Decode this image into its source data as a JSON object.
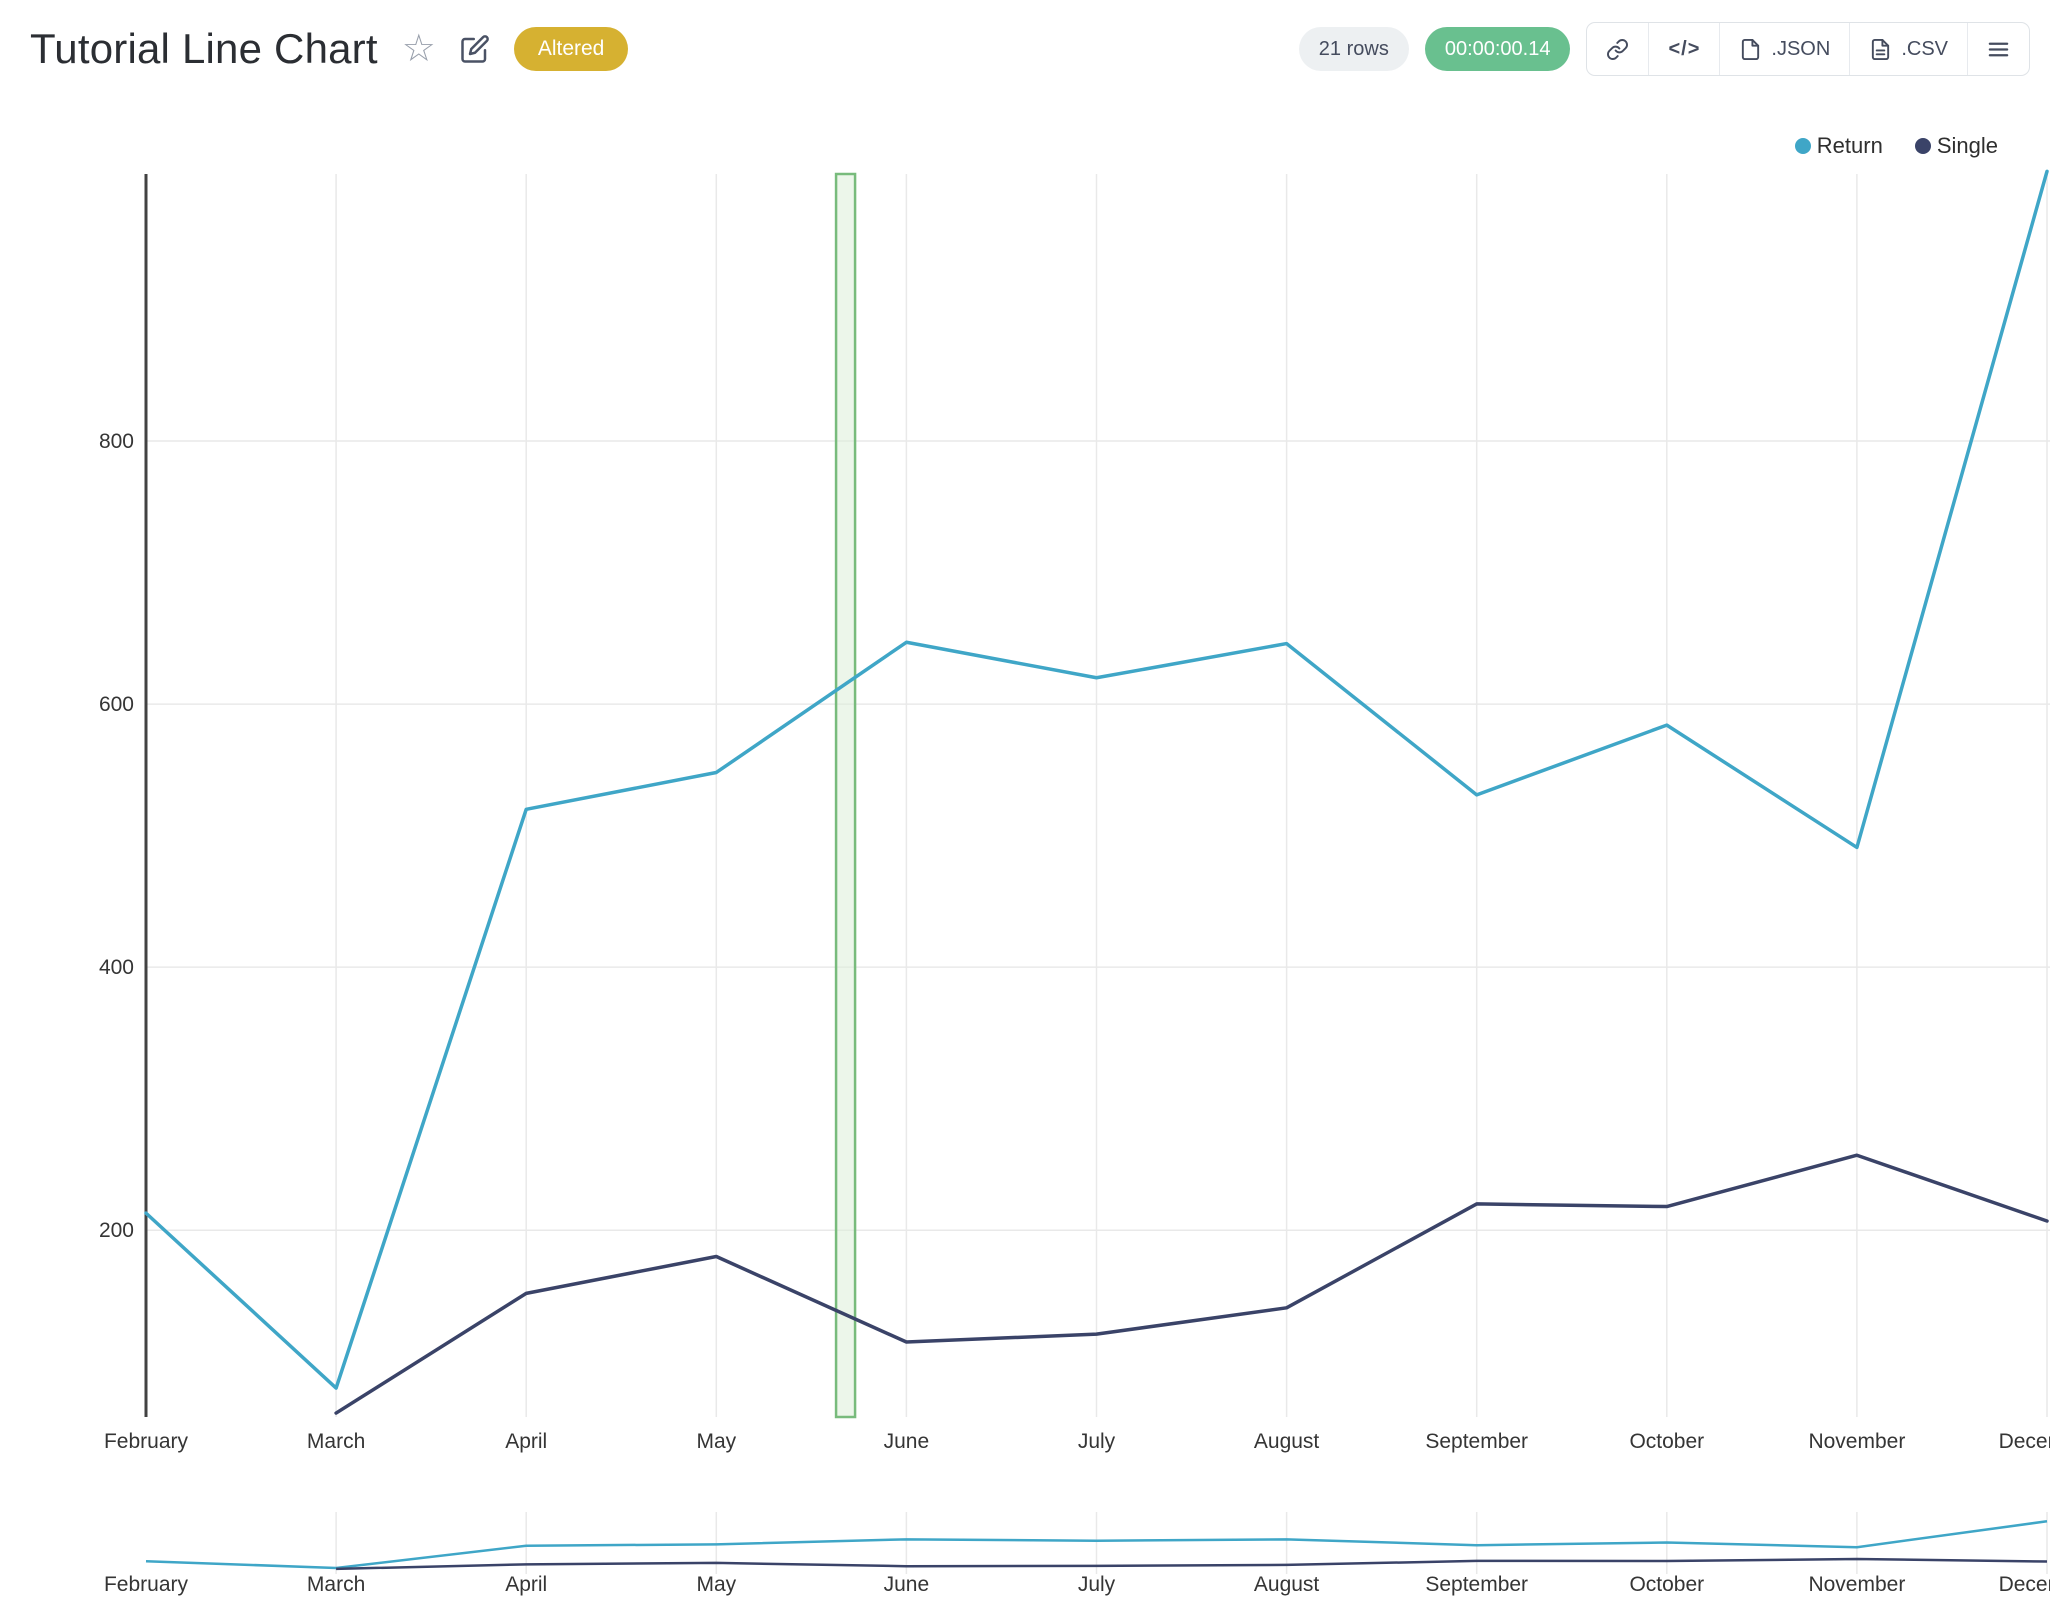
{
  "header": {
    "title": "Tutorial Line Chart",
    "badges": {
      "altered": "Altered",
      "rows": "21 rows",
      "timer": "00:00:00.14"
    },
    "toolbar": {
      "embed_label": "</>",
      "json_label": ".JSON",
      "csv_label": ".CSV"
    }
  },
  "legend": {
    "items": [
      {
        "label": "Return",
        "color": "#3fa6c7"
      },
      {
        "label": "Single",
        "color": "#3a4368"
      }
    ]
  },
  "chart_data": {
    "type": "line",
    "title": "Tutorial Line Chart",
    "x": [
      "February",
      "March",
      "April",
      "May",
      "June",
      "July",
      "August",
      "September",
      "October",
      "November",
      "December"
    ],
    "series": [
      {
        "name": "Return",
        "color": "#3fa6c7",
        "values": [
          213,
          80,
          520,
          548,
          647,
          620,
          646,
          531,
          584,
          491,
          1005
        ]
      },
      {
        "name": "Single",
        "color": "#3a4368",
        "values": [
          null,
          61,
          152,
          180,
          115,
          121,
          141,
          220,
          218,
          257,
          207
        ]
      }
    ],
    "yticks": [
      200,
      400,
      600,
      800
    ],
    "ylim": [
      58,
      1003
    ],
    "grid": true,
    "legend_position": "top-right",
    "selection_band": {
      "x_index_center": 3.68,
      "fill": "#dcefd9",
      "border": "#78bb7c"
    },
    "mini_chart": true
  }
}
